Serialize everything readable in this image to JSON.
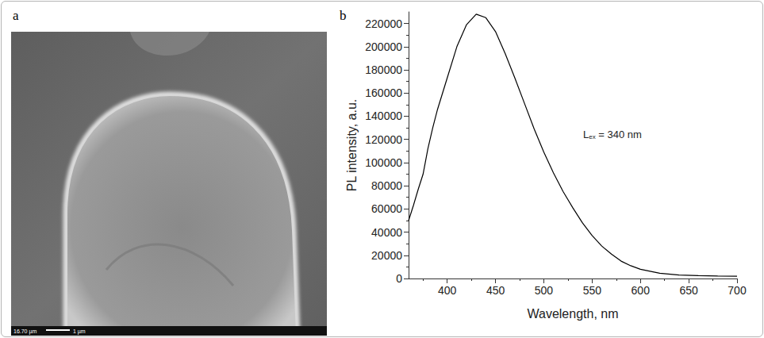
{
  "image_panel": {
    "letter": "a",
    "scale_texts": [
      "16.70 µm",
      "1 µm"
    ]
  },
  "chart_panel": {
    "letter": "b"
  },
  "chart_data": {
    "type": "line",
    "x_label": "Wavelength, nm",
    "y_label": "PL intensity, a.u.",
    "annotation": {
      "text": "L",
      "subscript": "ex",
      "suffix": " = 340 nm"
    },
    "x": [
      360,
      365,
      370,
      375,
      380,
      385,
      390,
      400,
      410,
      420,
      430,
      440,
      450,
      460,
      470,
      480,
      490,
      500,
      510,
      520,
      530,
      540,
      550,
      560,
      570,
      580,
      590,
      600,
      620,
      640,
      660,
      680,
      700
    ],
    "values": [
      50000,
      63000,
      77000,
      90000,
      112000,
      130000,
      146000,
      173000,
      200000,
      219000,
      228000,
      225000,
      213000,
      194000,
      173000,
      151000,
      129000,
      109000,
      91000,
      75000,
      61000,
      48000,
      37000,
      28000,
      21000,
      15000,
      11000,
      8000,
      4500,
      3000,
      2500,
      2200,
      2000
    ],
    "color": "#000000",
    "xlim": [
      360,
      700
    ],
    "xticks": [
      400,
      450,
      500,
      550,
      600,
      650,
      700
    ],
    "ylim": [
      0,
      230000
    ],
    "yticks": [
      0,
      20000,
      40000,
      60000,
      80000,
      100000,
      120000,
      140000,
      160000,
      180000,
      200000,
      220000
    ],
    "grid": false
  }
}
